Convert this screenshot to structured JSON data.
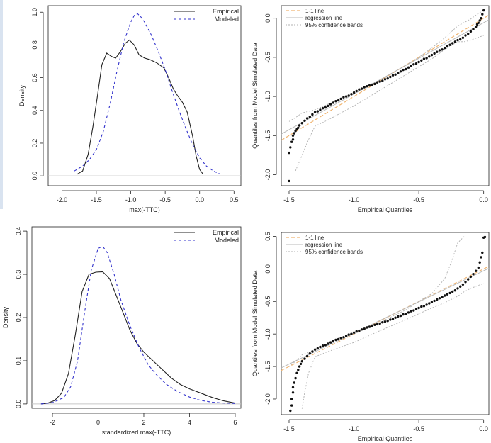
{
  "chart_data": [
    {
      "id": "p1",
      "type": "line",
      "title": "",
      "xlabel": "max(-TTC)",
      "ylabel": "Density",
      "xlim": [
        -2.2,
        0.6
      ],
      "ylim": [
        -0.06,
        1.04
      ],
      "xticks": [
        -2.0,
        -1.5,
        -1.0,
        -0.5,
        0.0,
        0.5
      ],
      "yticks": [
        0.0,
        0.2,
        0.4,
        0.6,
        0.8,
        1.0
      ],
      "legend": {
        "position": "top-right",
        "labels": [
          "Empirical",
          "Modeled"
        ]
      },
      "series": [
        {
          "name": "Empirical",
          "color": "#222222",
          "dash": "solid",
          "x": [
            -1.78,
            -1.7,
            -1.62,
            -1.55,
            -1.48,
            -1.42,
            -1.35,
            -1.28,
            -1.22,
            -1.15,
            -1.08,
            -1.02,
            -0.95,
            -0.88,
            -0.8,
            -0.72,
            -0.62,
            -0.52,
            -0.45,
            -0.38,
            -0.32,
            -0.25,
            -0.18,
            -0.1,
            -0.05,
            0.0,
            0.05
          ],
          "y": [
            0.01,
            0.03,
            0.13,
            0.3,
            0.5,
            0.68,
            0.75,
            0.73,
            0.72,
            0.76,
            0.81,
            0.83,
            0.8,
            0.74,
            0.72,
            0.71,
            0.69,
            0.66,
            0.6,
            0.53,
            0.49,
            0.45,
            0.39,
            0.24,
            0.12,
            0.04,
            0.01
          ]
        },
        {
          "name": "Modeled",
          "color": "#3333cc",
          "dash": "dashed",
          "x": [
            -1.82,
            -1.7,
            -1.6,
            -1.5,
            -1.4,
            -1.3,
            -1.2,
            -1.1,
            -1.0,
            -0.95,
            -0.9,
            -0.85,
            -0.8,
            -0.7,
            -0.6,
            -0.5,
            -0.4,
            -0.3,
            -0.2,
            -0.1,
            0.0,
            0.1,
            0.2,
            0.3
          ],
          "y": [
            0.03,
            0.06,
            0.1,
            0.16,
            0.27,
            0.44,
            0.64,
            0.82,
            0.94,
            0.98,
            0.99,
            0.97,
            0.94,
            0.86,
            0.76,
            0.65,
            0.52,
            0.4,
            0.29,
            0.19,
            0.11,
            0.06,
            0.03,
            0.01
          ]
        }
      ]
    },
    {
      "id": "p2",
      "type": "scatter",
      "title": "",
      "xlabel": "Empirical Quantiles",
      "ylabel": "Quantiles from Model Simulated Data",
      "xlim": [
        -1.56,
        0.04
      ],
      "ylim": [
        -2.14,
        0.16
      ],
      "xticks": [
        -1.5,
        -1.0,
        -0.5,
        0.0
      ],
      "yticks": [
        0.0,
        -0.5,
        -1.0,
        -1.5,
        -2.0
      ],
      "legend": {
        "position": "top-left",
        "labels": [
          "1-1 line",
          "regression line",
          "95% confidence bands"
        ]
      },
      "line_1to1": {
        "x": [
          -1.56,
          0.04
        ],
        "y": [
          -1.56,
          0.04
        ]
      },
      "regression": {
        "x": [
          -1.56,
          0.04
        ],
        "y": [
          -1.48,
          -0.02
        ]
      },
      "bands": {
        "upper": {
          "x": [
            -1.5,
            -1.45,
            -1.4,
            -1.3,
            -1.2,
            -1.0,
            -0.8,
            -0.6,
            -0.5,
            -0.4,
            -0.3,
            -0.2,
            -0.1,
            -0.05,
            0.0
          ],
          "y": [
            -1.32,
            -1.27,
            -1.21,
            -1.17,
            -1.1,
            -0.95,
            -0.79,
            -0.6,
            -0.5,
            -0.38,
            -0.25,
            -0.1,
            -0.01,
            0.05,
            0.1
          ]
        },
        "lower": {
          "x": [
            -1.45,
            -1.4,
            -1.35,
            -1.3,
            -1.2,
            -1.0,
            -0.8,
            -0.6,
            -0.5,
            -0.4,
            -0.3,
            -0.2,
            -0.15,
            -0.1,
            -0.05,
            0.0
          ],
          "y": [
            -1.95,
            -1.75,
            -1.55,
            -1.38,
            -1.3,
            -1.12,
            -0.92,
            -0.72,
            -0.62,
            -0.52,
            -0.4,
            -0.3,
            -0.3,
            -0.28,
            -0.25,
            -0.22
          ]
        }
      },
      "points": {
        "x": [
          -1.5,
          -1.49,
          -1.48,
          -1.47,
          -1.47,
          -1.46,
          -1.45,
          -1.44,
          -1.43,
          -1.42,
          -1.4,
          -1.38,
          -1.36,
          -1.34,
          -1.32,
          -1.3,
          -1.28,
          -1.26,
          -1.24,
          -1.22,
          -1.2,
          -1.18,
          -1.16,
          -1.14,
          -1.12,
          -1.1,
          -1.08,
          -1.06,
          -1.04,
          -1.02,
          -1.0,
          -0.98,
          -0.96,
          -0.94,
          -0.92,
          -0.9,
          -0.88,
          -0.86,
          -0.84,
          -0.82,
          -0.8,
          -0.78,
          -0.76,
          -0.74,
          -0.72,
          -0.7,
          -0.68,
          -0.66,
          -0.64,
          -0.62,
          -0.6,
          -0.58,
          -0.56,
          -0.54,
          -0.52,
          -0.5,
          -0.48,
          -0.46,
          -0.44,
          -0.42,
          -0.4,
          -0.38,
          -0.36,
          -0.34,
          -0.32,
          -0.3,
          -0.28,
          -0.26,
          -0.24,
          -0.22,
          -0.2,
          -0.18,
          -0.16,
          -0.14,
          -0.12,
          -0.1,
          -0.08,
          -0.06,
          -0.05,
          -0.04,
          -0.03,
          -0.02,
          -0.01,
          0.0,
          -1.5
        ],
        "y": [
          -1.72,
          -1.65,
          -1.58,
          -1.55,
          -1.5,
          -1.47,
          -1.44,
          -1.42,
          -1.4,
          -1.37,
          -1.34,
          -1.31,
          -1.28,
          -1.26,
          -1.23,
          -1.2,
          -1.19,
          -1.17,
          -1.15,
          -1.14,
          -1.12,
          -1.1,
          -1.08,
          -1.06,
          -1.05,
          -1.03,
          -1.01,
          -1.0,
          -0.99,
          -0.97,
          -0.95,
          -0.93,
          -0.91,
          -0.9,
          -0.88,
          -0.87,
          -0.86,
          -0.85,
          -0.84,
          -0.82,
          -0.81,
          -0.8,
          -0.78,
          -0.77,
          -0.75,
          -0.73,
          -0.72,
          -0.7,
          -0.68,
          -0.66,
          -0.65,
          -0.63,
          -0.61,
          -0.59,
          -0.58,
          -0.56,
          -0.54,
          -0.52,
          -0.51,
          -0.49,
          -0.47,
          -0.45,
          -0.43,
          -0.41,
          -0.4,
          -0.38,
          -0.36,
          -0.34,
          -0.32,
          -0.3,
          -0.28,
          -0.27,
          -0.25,
          -0.22,
          -0.2,
          -0.17,
          -0.14,
          -0.11,
          -0.08,
          -0.06,
          -0.03,
          0.0,
          0.05,
          0.1,
          -2.08
        ]
      }
    },
    {
      "id": "p3",
      "type": "line",
      "title": "",
      "xlabel": "standardized max(-TTC)",
      "ylabel": "Density",
      "xlim": [
        -2.9,
        6.25
      ],
      "ylim": [
        -0.01,
        0.41
      ],
      "xticks": [
        -2,
        0,
        2,
        4,
        6
      ],
      "yticks": [
        0.0,
        0.1,
        0.2,
        0.3,
        0.4
      ],
      "legend": {
        "position": "top-right",
        "labels": [
          "Empirical",
          "Modeled"
        ]
      },
      "series": [
        {
          "name": "Empirical",
          "color": "#222222",
          "dash": "solid",
          "x": [
            -2.5,
            -2.2,
            -1.9,
            -1.6,
            -1.3,
            -1.0,
            -0.7,
            -0.4,
            -0.1,
            0.2,
            0.5,
            0.8,
            1.1,
            1.4,
            1.7,
            2.0,
            2.4,
            2.8,
            3.2,
            3.6,
            4.0,
            4.5,
            5.0,
            5.5,
            6.0
          ],
          "y": [
            0.0,
            0.002,
            0.008,
            0.025,
            0.07,
            0.16,
            0.26,
            0.3,
            0.305,
            0.306,
            0.29,
            0.25,
            0.21,
            0.17,
            0.14,
            0.12,
            0.1,
            0.08,
            0.06,
            0.045,
            0.035,
            0.025,
            0.015,
            0.007,
            0.002
          ]
        },
        {
          "name": "Modeled",
          "color": "#3333cc",
          "dash": "dashed",
          "x": [
            -2.5,
            -2.0,
            -1.5,
            -1.2,
            -0.9,
            -0.6,
            -0.3,
            0.0,
            0.2,
            0.4,
            0.7,
            1.0,
            1.4,
            1.8,
            2.2,
            2.6,
            3.0,
            3.5,
            4.0,
            4.5,
            5.0,
            5.5,
            6.0
          ],
          "y": [
            0.0,
            0.003,
            0.015,
            0.04,
            0.1,
            0.21,
            0.31,
            0.36,
            0.365,
            0.35,
            0.3,
            0.24,
            0.18,
            0.13,
            0.09,
            0.065,
            0.045,
            0.028,
            0.016,
            0.008,
            0.004,
            0.002,
            0.001
          ]
        }
      ]
    },
    {
      "id": "p4",
      "type": "scatter",
      "title": "",
      "xlabel": "Empirical Quantiles",
      "ylabel": "Quantiles from Model Simulated Data",
      "xlim": [
        -1.56,
        0.04
      ],
      "ylim": [
        -2.24,
        0.56
      ],
      "xticks": [
        -1.5,
        -1.0,
        -0.5,
        0.0
      ],
      "yticks": [
        0.5,
        0.0,
        -0.5,
        -1.0,
        -1.5,
        -2.0
      ],
      "legend": {
        "position": "top-left",
        "labels": [
          "1-1 line",
          "regression line",
          "95% confidence bands"
        ]
      },
      "line_1to1": {
        "x": [
          -1.56,
          0.04
        ],
        "y": [
          -1.56,
          0.04
        ]
      },
      "regression": {
        "x": [
          -1.56,
          0.04
        ],
        "y": [
          -1.52,
          0.01
        ]
      },
      "bands": {
        "upper": {
          "x": [
            -1.5,
            -1.45,
            -1.4,
            -1.3,
            -1.2,
            -1.0,
            -0.8,
            -0.6,
            -0.5,
            -0.4,
            -0.3,
            -0.25,
            -0.2,
            -0.15
          ],
          "y": [
            -1.5,
            -1.42,
            -1.32,
            -1.25,
            -1.17,
            -1.0,
            -0.82,
            -0.63,
            -0.5,
            -0.38,
            -0.15,
            0.1,
            0.4,
            0.5
          ]
        },
        "lower": {
          "x": [
            -1.4,
            -1.38,
            -1.35,
            -1.3,
            -1.2,
            -1.0,
            -0.8,
            -0.6,
            -0.5,
            -0.4,
            -0.3,
            -0.2,
            -0.15,
            -0.1,
            -0.05,
            0.0
          ],
          "y": [
            -2.15,
            -1.9,
            -1.6,
            -1.35,
            -1.27,
            -1.13,
            -0.95,
            -0.78,
            -0.69,
            -0.6,
            -0.52,
            -0.42,
            -0.35,
            -0.3,
            -0.26,
            -0.22
          ]
        }
      },
      "points": {
        "x": [
          -1.49,
          -1.48,
          -1.48,
          -1.47,
          -1.47,
          -1.46,
          -1.45,
          -1.44,
          -1.43,
          -1.42,
          -1.41,
          -1.4,
          -1.38,
          -1.36,
          -1.34,
          -1.32,
          -1.3,
          -1.28,
          -1.26,
          -1.24,
          -1.22,
          -1.2,
          -1.18,
          -1.16,
          -1.14,
          -1.12,
          -1.1,
          -1.08,
          -1.06,
          -1.04,
          -1.02,
          -1.0,
          -0.98,
          -0.96,
          -0.94,
          -0.92,
          -0.9,
          -0.88,
          -0.86,
          -0.84,
          -0.82,
          -0.8,
          -0.78,
          -0.76,
          -0.74,
          -0.72,
          -0.7,
          -0.68,
          -0.66,
          -0.64,
          -0.62,
          -0.6,
          -0.58,
          -0.56,
          -0.54,
          -0.52,
          -0.5,
          -0.48,
          -0.46,
          -0.44,
          -0.42,
          -0.4,
          -0.38,
          -0.36,
          -0.34,
          -0.32,
          -0.3,
          -0.28,
          -0.26,
          -0.24,
          -0.22,
          -0.2,
          -0.18,
          -0.16,
          -0.14,
          -0.12,
          -0.1,
          -0.08,
          -0.06,
          -0.04,
          -0.03,
          -0.02,
          -0.01,
          0.0,
          0.01
        ],
        "y": [
          -2.18,
          -2.1,
          -2.0,
          -1.9,
          -1.82,
          -1.75,
          -1.68,
          -1.6,
          -1.55,
          -1.5,
          -1.46,
          -1.42,
          -1.38,
          -1.34,
          -1.3,
          -1.27,
          -1.24,
          -1.22,
          -1.2,
          -1.18,
          -1.17,
          -1.15,
          -1.13,
          -1.11,
          -1.09,
          -1.08,
          -1.06,
          -1.05,
          -1.03,
          -1.01,
          -1.0,
          -0.98,
          -0.96,
          -0.95,
          -0.93,
          -0.92,
          -0.9,
          -0.89,
          -0.88,
          -0.86,
          -0.85,
          -0.84,
          -0.82,
          -0.81,
          -0.8,
          -0.78,
          -0.77,
          -0.75,
          -0.73,
          -0.72,
          -0.7,
          -0.69,
          -0.67,
          -0.65,
          -0.64,
          -0.62,
          -0.6,
          -0.58,
          -0.57,
          -0.55,
          -0.53,
          -0.51,
          -0.49,
          -0.47,
          -0.45,
          -0.43,
          -0.41,
          -0.39,
          -0.37,
          -0.35,
          -0.33,
          -0.3,
          -0.27,
          -0.24,
          -0.2,
          -0.16,
          -0.12,
          -0.08,
          -0.03,
          0.02,
          0.1,
          0.18,
          0.25,
          0.48,
          0.49
        ]
      }
    }
  ]
}
